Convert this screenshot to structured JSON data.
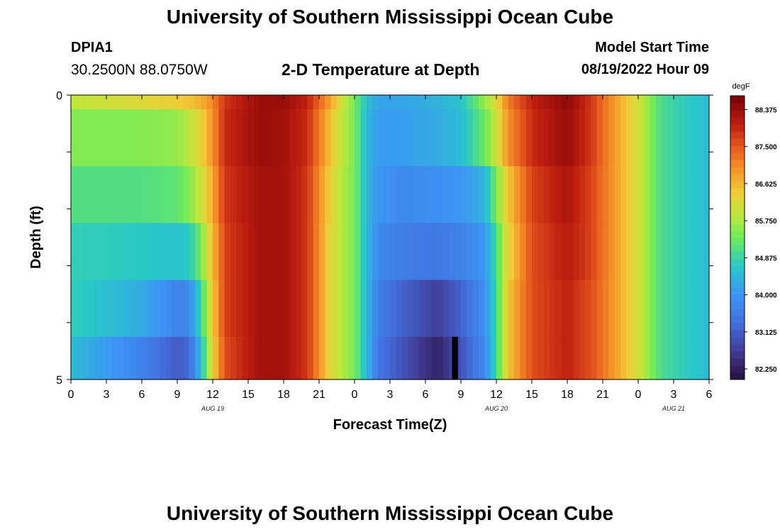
{
  "header": {
    "title": "University of Southern Mississippi Ocean Cube",
    "station_id": "DPIA1",
    "coordinates": "30.2500N  88.0750W",
    "chart_title": "2-D Temperature at Depth",
    "model_start_label": "Model Start Time",
    "model_start_value": "08/19/2022 Hour 09"
  },
  "footer": {
    "title": "University of Southern Mississippi Ocean Cube"
  },
  "chart_data": {
    "type": "heatmap",
    "title": "2-D Temperature at Depth",
    "xlabel": "Forecast Time(Z)",
    "ylabel": "Depth (ft)",
    "x_start_hour": 0,
    "x_hours_total": 54,
    "x_ticks": [
      {
        "h": 0,
        "label": "0"
      },
      {
        "h": 3,
        "label": "3"
      },
      {
        "h": 6,
        "label": "6"
      },
      {
        "h": 9,
        "label": "9"
      },
      {
        "h": 12,
        "label": "12"
      },
      {
        "h": 15,
        "label": "15"
      },
      {
        "h": 18,
        "label": "18"
      },
      {
        "h": 21,
        "label": "21"
      },
      {
        "h": 24,
        "label": "0"
      },
      {
        "h": 27,
        "label": "3"
      },
      {
        "h": 30,
        "label": "6"
      },
      {
        "h": 33,
        "label": "9"
      },
      {
        "h": 36,
        "label": "12"
      },
      {
        "h": 39,
        "label": "15"
      },
      {
        "h": 42,
        "label": "18"
      },
      {
        "h": 45,
        "label": "21"
      },
      {
        "h": 48,
        "label": "0"
      },
      {
        "h": 51,
        "label": "3"
      },
      {
        "h": 54,
        "label": "6"
      }
    ],
    "date_labels": [
      {
        "h": 12,
        "label": "AUG 19"
      },
      {
        "h": 36,
        "label": "AUG 20"
      },
      {
        "h": 51,
        "label": "AUG 21"
      }
    ],
    "y_ticks": [
      {
        "v": 0,
        "label": "0"
      },
      {
        "v": 5,
        "label": "5"
      }
    ],
    "ylim": [
      0,
      5
    ],
    "depth_levels": [
      0,
      1,
      2,
      3,
      4,
      5
    ],
    "colorbar": {
      "unit": "degF",
      "min": 82.0,
      "max": 88.7,
      "tick_values": [
        88.375,
        87.5,
        86.625,
        85.75,
        84.875,
        84.0,
        83.125,
        82.25
      ],
      "tick_labels": [
        "88.375",
        "87.500",
        "86.625",
        "85.750",
        "84.875",
        "84.000",
        "83.125",
        "82.250"
      ]
    },
    "key_hours": [
      0,
      6,
      9,
      10,
      11,
      12,
      13,
      16,
      18,
      20,
      22,
      23,
      24,
      25,
      26,
      28,
      31,
      33,
      35,
      36,
      37,
      39,
      42,
      44,
      46,
      48,
      50,
      54
    ],
    "rows": [
      {
        "depth_band": "0-0.25",
        "values": [
          85.9,
          86.2,
          86.4,
          86.5,
          86.7,
          87.1,
          87.8,
          88.4,
          88.4,
          88.0,
          86.8,
          86.0,
          85.4,
          84.6,
          84.2,
          84.2,
          84.4,
          84.6,
          85.6,
          86.2,
          87.2,
          88.0,
          88.5,
          87.8,
          86.9,
          86.1,
          85.0,
          84.5
        ]
      },
      {
        "depth_band": "0.25-1.25",
        "values": [
          85.5,
          85.5,
          85.6,
          85.9,
          86.3,
          87.0,
          87.9,
          88.4,
          88.3,
          87.9,
          86.5,
          85.9,
          85.4,
          84.5,
          84.1,
          84.1,
          84.3,
          84.5,
          85.3,
          86.0,
          87.0,
          87.9,
          88.4,
          87.8,
          86.9,
          86.1,
          85.0,
          84.5
        ]
      },
      {
        "depth_band": "1.25-2.25",
        "values": [
          85.1,
          85.1,
          85.2,
          85.5,
          86.0,
          86.8,
          87.8,
          88.3,
          88.3,
          87.8,
          86.3,
          85.8,
          85.4,
          84.5,
          84.0,
          83.8,
          83.9,
          84.0,
          84.4,
          85.4,
          86.5,
          87.7,
          88.2,
          87.7,
          86.9,
          86.1,
          85.0,
          84.5
        ]
      },
      {
        "depth_band": "2.25-3.25",
        "values": [
          84.8,
          84.7,
          84.6,
          84.7,
          85.4,
          86.6,
          87.7,
          88.3,
          88.3,
          87.8,
          86.2,
          85.8,
          85.4,
          84.5,
          83.8,
          83.6,
          83.5,
          83.7,
          84.0,
          85.0,
          86.3,
          87.6,
          88.1,
          87.7,
          86.9,
          86.1,
          85.0,
          84.5
        ]
      },
      {
        "depth_band": "3.25-4.25",
        "values": [
          84.8,
          84.3,
          83.7,
          83.8,
          84.9,
          86.4,
          87.7,
          88.3,
          88.3,
          87.8,
          86.2,
          85.8,
          85.4,
          84.5,
          83.6,
          83.2,
          82.7,
          83.2,
          83.9,
          84.9,
          86.5,
          87.6,
          88.0,
          87.6,
          86.9,
          86.1,
          85.0,
          84.5
        ]
      },
      {
        "depth_band": "4.25-5",
        "values": [
          84.5,
          83.7,
          83.1,
          83.3,
          84.5,
          86.3,
          87.6,
          88.3,
          88.3,
          87.8,
          86.2,
          85.8,
          85.4,
          84.5,
          83.5,
          83.0,
          82.3,
          83.0,
          83.8,
          84.9,
          86.5,
          87.6,
          88.0,
          87.6,
          86.9,
          86.1,
          85.0,
          84.5
        ]
      }
    ],
    "missing_data": [
      {
        "depth_band": "4.25-5",
        "hour_start": 32.25,
        "hour_end": 32.75
      }
    ]
  }
}
